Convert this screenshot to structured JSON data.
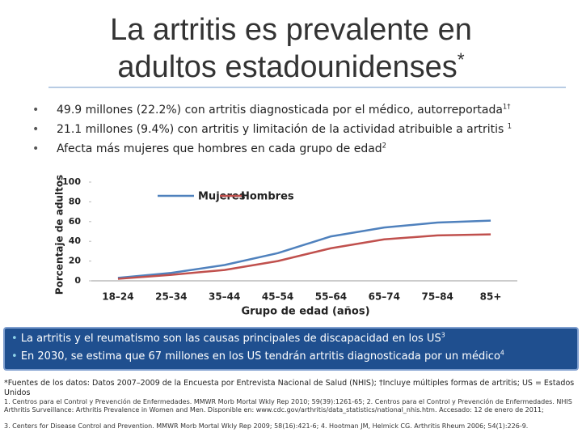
{
  "title": {
    "line1": "La artritis es prevalente en",
    "line2": "adultos estadounidenses",
    "sup": "*"
  },
  "bullets": [
    {
      "text": "49.9 millones (22.2%) con artritis diagnosticada por el médico, autorreportada",
      "sup": "1†"
    },
    {
      "text": "21.1 millones (9.4%) con artritis y limitación de la actividad atribuible a artritis ",
      "sup": "1"
    },
    {
      "text": "Afecta más mujeres que hombres en cada grupo de edad",
      "sup": "2"
    }
  ],
  "chart_data": {
    "type": "line",
    "y_label": "Porcentaje de adultos",
    "x_label": "Grupo de edad (años)",
    "categories": [
      "18–24",
      "25–34",
      "35–44",
      "45–54",
      "55–64",
      "65–74",
      "75–84",
      "85+"
    ],
    "series": [
      {
        "name": "Mujeres",
        "color": "#4f81bd",
        "values": [
          3,
          8,
          16,
          28,
          45,
          54,
          59,
          61
        ]
      },
      {
        "name": "Hombres",
        "color": "#c0504d",
        "values": [
          2,
          6,
          11,
          20,
          33,
          42,
          46,
          47
        ]
      }
    ],
    "ylim": [
      0,
      100
    ],
    "yticks": [
      0,
      20,
      40,
      60,
      80,
      100
    ],
    "legend": "top"
  },
  "box_bullets": [
    {
      "text": "La artritis y el reumatismo son las causas principales de discapacidad en los US",
      "sup": "3"
    },
    {
      "text": "En 2030, se estima que 67 millones en los US tendrán artritis diagnosticada por un médico",
      "sup": "4"
    }
  ],
  "footnote": "*Fuentes de los datos: Datos 2007–2009 de la Encuesta por Entrevista Nacional de Salud (NHIS); †Incluye múltiples formas de artritis; US = Estados Unidos",
  "references": [
    "1. Centros para el Control y Prevención de Enfermedades. MMWR Morb Mortal Wkly Rep 2010; 59(39):1261-65; 2. Centros para el Control y Prevención de Enfermedades. NHIS Arthritis Surveillance: Arthritis Prevalence in Women and Men. Disponible en: www.cdc.gov/arthritis/data_statistics/national_nhis.htm. Accesado: 12 de enero de 2011;",
    "3. Centers for Disease Control and Prevention. MMWR Morb Mortal Wkly Rep 2009; 58(16):421-6; 4. Hootman JM, Helmick CG. Arthritis Rheum 2006; 54(1):226-9."
  ]
}
